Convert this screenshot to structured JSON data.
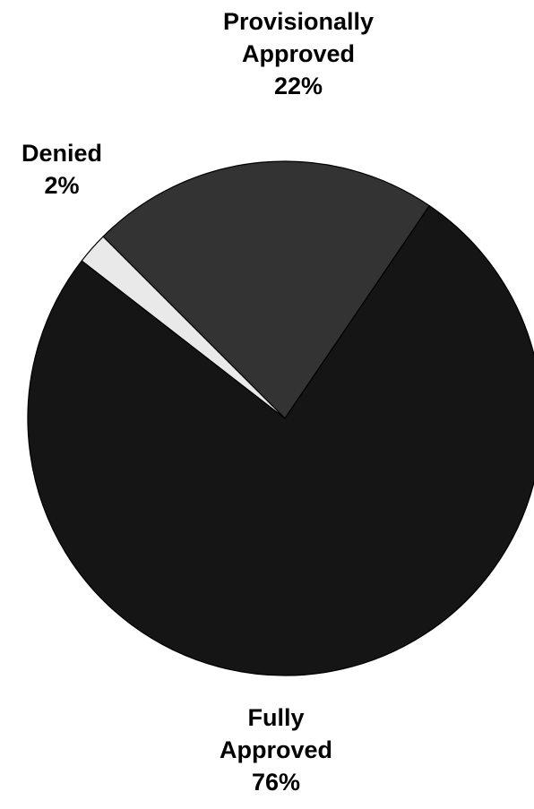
{
  "chart_data": {
    "type": "pie",
    "title": "",
    "slices": [
      {
        "label_lines": [
          "Provisionally",
          "Approved"
        ],
        "percent_text": "22%",
        "value": 22,
        "color": "#333333"
      },
      {
        "label_lines": [
          "Fully",
          "Approved"
        ],
        "percent_text": "76%",
        "value": 76,
        "color": "#151515"
      },
      {
        "label_lines": [
          "Denied"
        ],
        "percent_text": "2%",
        "value": 2,
        "color": "#e9e9e9"
      }
    ],
    "legend": "none"
  }
}
